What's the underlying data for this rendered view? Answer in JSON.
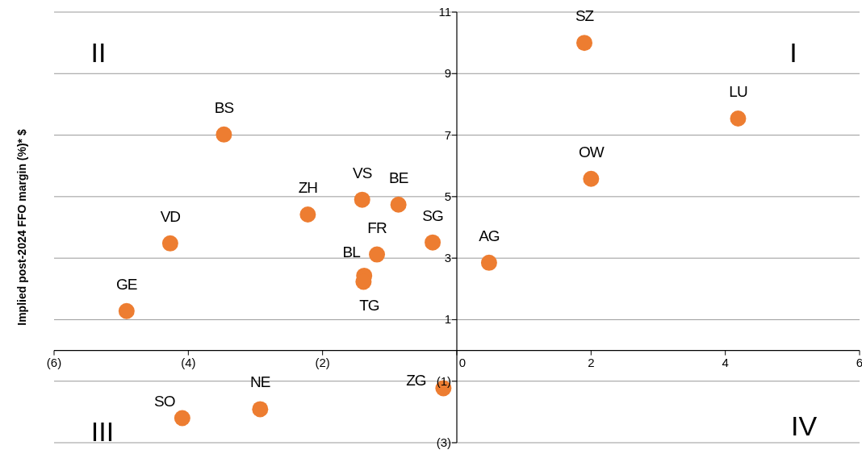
{
  "chart_data": {
    "type": "scatter",
    "ylabel": "Implied post-2024 FFO margin (%)* $",
    "x": [
      1.9,
      4.19,
      2.0,
      0.48,
      -3.47,
      -2.22,
      -1.41,
      -0.87,
      -0.36,
      -1.19,
      -1.38,
      -1.39,
      -4.27,
      -4.92,
      -0.2,
      -2.93,
      -4.09
    ],
    "series": [
      {
        "color": "#ed7d31",
        "values": [
          10.0,
          7.54,
          5.58,
          2.85,
          7.02,
          4.42,
          4.9,
          4.74,
          3.51,
          3.12,
          2.43,
          2.23,
          3.48,
          1.28,
          -1.23,
          -1.91,
          -2.2
        ]
      }
    ],
    "xlim": [
      -6,
      6
    ],
    "xticks": [
      {
        "value": -6,
        "label": "(6)"
      },
      {
        "value": -4,
        "label": "(4)"
      },
      {
        "value": -2,
        "label": "(2)"
      },
      0,
      2,
      4,
      6
    ],
    "ylim": [
      -3,
      11
    ],
    "yticks": [
      {
        "value": -3,
        "label": "(3)"
      },
      {
        "value": -1,
        "label": "(1)"
      },
      1,
      3,
      5,
      7,
      9,
      11
    ],
    "grid": "y",
    "legend": false,
    "marker": "circle",
    "annotations": [
      {
        "text": "SZ",
        "x": 1.9,
        "y": 10.0
      },
      {
        "text": "LU",
        "x": 4.19,
        "y": 7.54
      },
      {
        "text": "OW",
        "x": 2.0,
        "y": 5.58
      },
      {
        "text": "AG",
        "x": 0.48,
        "y": 2.85
      },
      {
        "text": "BS",
        "x": -3.47,
        "y": 7.02
      },
      {
        "text": "ZH",
        "x": -2.22,
        "y": 4.42
      },
      {
        "text": "VS",
        "x": -1.41,
        "y": 4.9
      },
      {
        "text": "BE",
        "x": -0.87,
        "y": 4.74
      },
      {
        "text": "SG",
        "x": -0.36,
        "y": 3.51
      },
      {
        "text": "FR",
        "x": -1.19,
        "y": 3.12
      },
      {
        "text": "BL",
        "x": -1.38,
        "y": 2.43
      },
      {
        "text": "TG",
        "x": -1.39,
        "y": 2.23
      },
      {
        "text": "VD",
        "x": -4.27,
        "y": 3.48
      },
      {
        "text": "GE",
        "x": -4.92,
        "y": 1.28
      },
      {
        "text": "ZG",
        "x": -0.2,
        "y": -1.23
      },
      {
        "text": "NE",
        "x": -2.93,
        "y": -1.91
      },
      {
        "text": "SO",
        "x": -4.09,
        "y": -2.2
      },
      "I",
      "II",
      "III",
      "IV"
    ]
  }
}
